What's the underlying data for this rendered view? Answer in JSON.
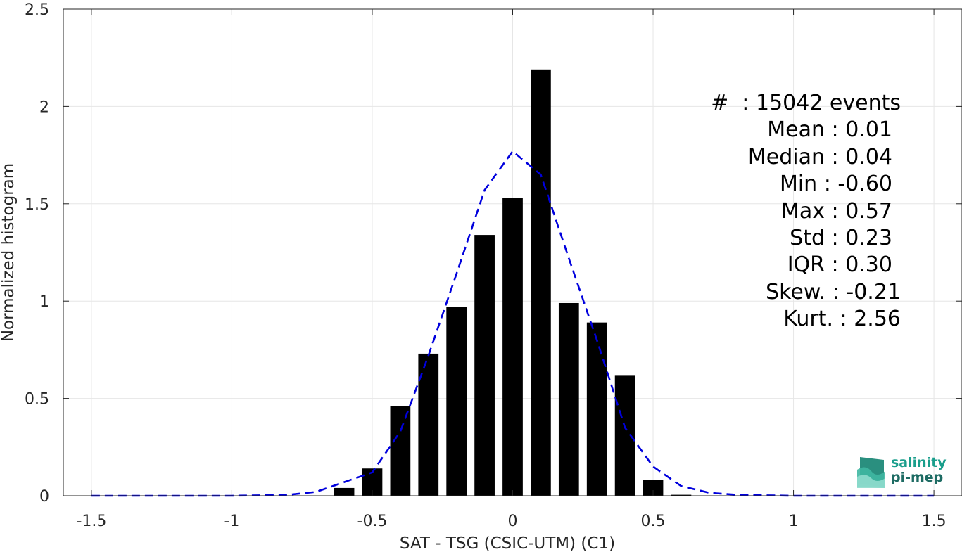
{
  "chart_data": {
    "type": "bar",
    "xlabel": "SAT - TSG (CSIC-UTM) (C1)",
    "ylabel": "Normalized histogram",
    "xlim": [
      -1.6,
      1.6
    ],
    "ylim": [
      0,
      2.5
    ],
    "grid": true,
    "xticks": [
      -1.5,
      -1,
      -0.5,
      0,
      0.5,
      1,
      1.5
    ],
    "xtick_labels": [
      "-1.5",
      "-1",
      "-0.5",
      "0",
      "0.5",
      "1",
      "1.5"
    ],
    "yticks": [
      0,
      0.5,
      1,
      1.5,
      2,
      2.5
    ],
    "ytick_labels": [
      "0",
      "0.5",
      "1",
      "1.5",
      "2",
      "2.5"
    ],
    "bar_color": "#000000",
    "bars": {
      "x": [
        -0.6,
        -0.5,
        -0.4,
        -0.3,
        -0.2,
        -0.1,
        0.0,
        0.1,
        0.2,
        0.3,
        0.4,
        0.5,
        0.6
      ],
      "values": [
        0.04,
        0.14,
        0.46,
        0.73,
        0.97,
        1.34,
        1.53,
        2.19,
        0.99,
        0.89,
        0.62,
        0.08,
        0.005
      ]
    },
    "fit_line": {
      "color": "#0000dd",
      "style": "dashed",
      "x": [
        -1.5,
        -1.4,
        -1.3,
        -1.2,
        -1.1,
        -1.0,
        -0.9,
        -0.8,
        -0.7,
        -0.6,
        -0.5,
        -0.4,
        -0.3,
        -0.2,
        -0.1,
        0.0,
        0.1,
        0.2,
        0.3,
        0.4,
        0.5,
        0.6,
        0.7,
        0.8,
        0.9,
        1.0,
        1.1,
        1.2,
        1.3,
        1.4,
        1.5
      ],
      "y": [
        0,
        0,
        0,
        0,
        0,
        0,
        0.002,
        0.005,
        0.02,
        0.07,
        0.12,
        0.33,
        0.72,
        1.14,
        1.57,
        1.77,
        1.65,
        1.22,
        0.8,
        0.35,
        0.15,
        0.05,
        0.015,
        0.005,
        0.002,
        0,
        0,
        0,
        0,
        0,
        0
      ]
    },
    "stats": [
      "#  : 15042 events",
      "Mean : 0.01",
      "Median : 0.04",
      "Min : -0.60",
      "Max : 0.57",
      "Std : 0.23",
      "IQR : 0.30",
      "Skew. : -0.21",
      "Kurt. : 2.56"
    ]
  },
  "logo": {
    "line1": "salinity",
    "line2": "pi-mep"
  }
}
